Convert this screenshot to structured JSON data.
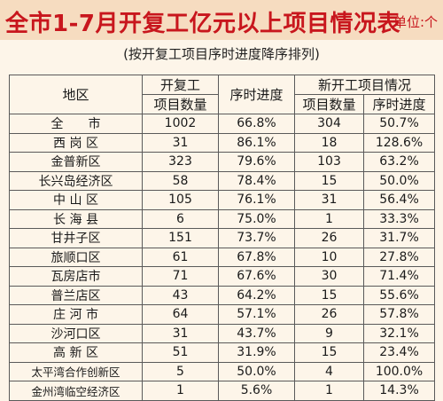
{
  "header": {
    "title": "全市1-7月开复工亿元以上项目情况表",
    "unit": "单位:个",
    "subtitle": "(按开复工项目序时进度降序排列)"
  },
  "table": {
    "headers": {
      "region": "地区",
      "resumed_group": "开复工",
      "resumed_count": "项目数量",
      "resumed_progress": "序时进度",
      "new_group": "新开工项目情况",
      "new_count": "项目数量",
      "new_progress": "序时进度"
    },
    "rows": [
      {
        "region": "全　　市",
        "resumed_count": "1002",
        "resumed_progress": "66.8%",
        "new_count": "304",
        "new_progress": "50.7%"
      },
      {
        "region": "西 岗 区",
        "resumed_count": "31",
        "resumed_progress": "86.1%",
        "new_count": "18",
        "new_progress": "128.6%"
      },
      {
        "region": "金普新区",
        "resumed_count": "323",
        "resumed_progress": "79.6%",
        "new_count": "103",
        "new_progress": "63.2%"
      },
      {
        "region": "长兴岛经济区",
        "resumed_count": "58",
        "resumed_progress": "78.4%",
        "new_count": "15",
        "new_progress": "50.0%"
      },
      {
        "region": "中 山 区",
        "resumed_count": "105",
        "resumed_progress": "76.1%",
        "new_count": "31",
        "new_progress": "56.4%"
      },
      {
        "region": "长 海 县",
        "resumed_count": "6",
        "resumed_progress": "75.0%",
        "new_count": "1",
        "new_progress": "33.3%"
      },
      {
        "region": "甘井子区",
        "resumed_count": "151",
        "resumed_progress": "73.7%",
        "new_count": "26",
        "new_progress": "31.7%"
      },
      {
        "region": "旅顺口区",
        "resumed_count": "61",
        "resumed_progress": "67.8%",
        "new_count": "10",
        "new_progress": "27.8%"
      },
      {
        "region": "瓦房店市",
        "resumed_count": "71",
        "resumed_progress": "67.6%",
        "new_count": "30",
        "new_progress": "71.4%"
      },
      {
        "region": "普兰店区",
        "resumed_count": "43",
        "resumed_progress": "64.2%",
        "new_count": "15",
        "new_progress": "55.6%"
      },
      {
        "region": "庄 河 市",
        "resumed_count": "64",
        "resumed_progress": "57.1%",
        "new_count": "26",
        "new_progress": "57.8%"
      },
      {
        "region": "沙河口区",
        "resumed_count": "31",
        "resumed_progress": "43.7%",
        "new_count": "9",
        "new_progress": "32.1%"
      },
      {
        "region": "高 新 区",
        "resumed_count": "51",
        "resumed_progress": "31.9%",
        "new_count": "15",
        "new_progress": "23.4%"
      },
      {
        "region": "太平湾合作创新区",
        "resumed_count": "5",
        "resumed_progress": "50.0%",
        "new_count": "4",
        "new_progress": "100.0%"
      },
      {
        "region": "金州湾临空经济区",
        "resumed_count": "1",
        "resumed_progress": "5.6%",
        "new_count": "1",
        "new_progress": "14.3%"
      }
    ]
  },
  "colors": {
    "title_red": "#c8161d",
    "header_band": "#f6dcc0",
    "page_background": "#fdf5e9"
  }
}
